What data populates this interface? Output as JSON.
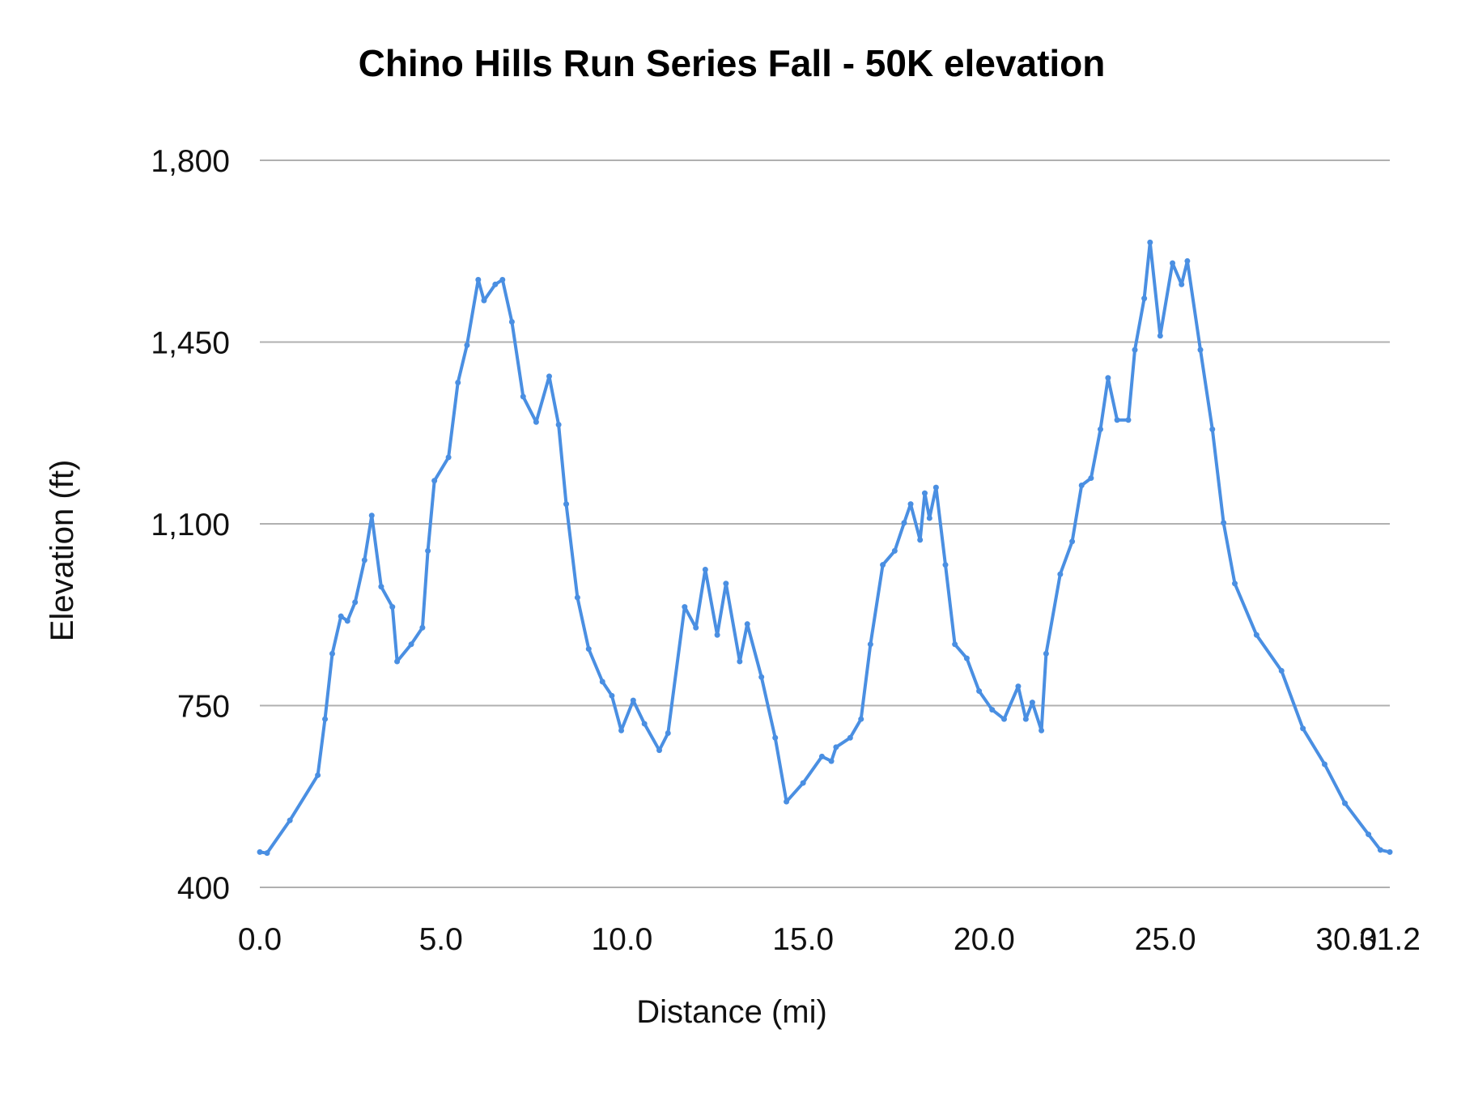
{
  "chart_data": {
    "type": "line",
    "title": "Chino Hills Run Series Fall - 50K elevation",
    "xlabel": "Distance (mi)",
    "ylabel": "Elevation (ft)",
    "xlim": [
      0,
      31.2
    ],
    "ylim": [
      400,
      1800
    ],
    "x_ticks": [
      "0.0",
      "5.0",
      "10.0",
      "15.0",
      "20.0",
      "25.0",
      "30.0",
      "31.2"
    ],
    "x_tick_values": [
      0,
      5,
      10,
      15,
      20,
      25,
      30,
      31.2
    ],
    "y_ticks": [
      "400",
      "750",
      "1,100",
      "1,450",
      "1,800"
    ],
    "y_tick_values": [
      400,
      750,
      1100,
      1450,
      1800
    ],
    "grid": "horizontal",
    "line_color": "#4a8fe2",
    "grid_color": "#b0b0b0",
    "series": [
      {
        "x": [
          0,
          0.2,
          0.83,
          1.6,
          1.8,
          2.0,
          2.24,
          2.42,
          2.63,
          2.89,
          3.09,
          3.35,
          3.66,
          3.79,
          4.18,
          4.49,
          4.64,
          4.82,
          5.21,
          5.47,
          5.72,
          6.03,
          6.19,
          6.5,
          6.7,
          6.96,
          7.27,
          7.63,
          7.99,
          8.25,
          8.46,
          8.77,
          9.08,
          9.46,
          9.72,
          9.98,
          10.31,
          10.62,
          11.03,
          11.27,
          11.73,
          12.04,
          12.3,
          12.63,
          12.87,
          13.25,
          13.46,
          13.85,
          14.23,
          14.54,
          15.0,
          15.52,
          15.78,
          15.91,
          16.3,
          16.6,
          16.86,
          17.2,
          17.53,
          17.79,
          17.97,
          18.23,
          18.36,
          18.49,
          18.67,
          18.93,
          19.19,
          19.52,
          19.86,
          20.22,
          20.55,
          20.94,
          21.15,
          21.33,
          21.58,
          21.71,
          22.1,
          22.43,
          22.69,
          22.95,
          23.21,
          23.42,
          23.67,
          23.98,
          24.16,
          24.42,
          24.58,
          24.86,
          25.2,
          25.45,
          25.61,
          25.97,
          26.3,
          26.61,
          26.92,
          27.52,
          28.21,
          28.8,
          29.4,
          29.96,
          30.61,
          30.94,
          31.2
        ],
        "y": [
          468,
          466,
          529,
          616,
          724,
          850,
          922,
          913,
          949,
          1030,
          1116,
          979,
          940,
          835,
          868,
          900,
          1048,
          1183,
          1228,
          1372,
          1444,
          1570,
          1530,
          1561,
          1570,
          1489,
          1345,
          1296,
          1384,
          1291,
          1138,
          958,
          859,
          796,
          769,
          702,
          760,
          715,
          664,
          697,
          940,
          900,
          1012,
          886,
          985,
          835,
          907,
          805,
          688,
          565,
          601,
          652,
          643,
          670,
          688,
          724,
          868,
          1021,
          1048,
          1102,
          1138,
          1069,
          1159,
          1111,
          1170,
          1021,
          868,
          841,
          778,
          742,
          724,
          787,
          724,
          756,
          702,
          850,
          1003,
          1066,
          1174,
          1188,
          1282,
          1381,
          1300,
          1300,
          1435,
          1534,
          1642,
          1462,
          1602,
          1561,
          1606,
          1435,
          1282,
          1102,
          985,
          886,
          817,
          706,
          637,
          562,
          502,
          472,
          468
        ]
      }
    ]
  }
}
